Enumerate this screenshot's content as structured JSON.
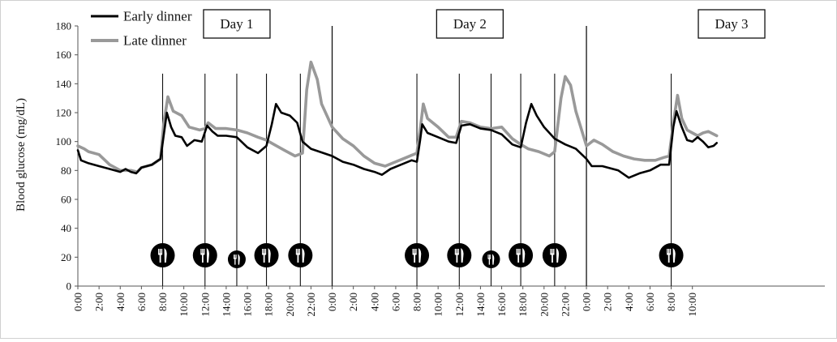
{
  "chart_data": {
    "type": "line",
    "title": "",
    "ylabel": "Blood glucose (mg/dL)",
    "xlabel": "",
    "ylim": [
      0,
      180
    ],
    "yticks": [
      0,
      20,
      40,
      60,
      80,
      100,
      120,
      140,
      160,
      180
    ],
    "grid": false,
    "legend_position": "top-left",
    "x_unit": "hours from Day 1 0:00",
    "x_range": [
      0,
      70.5
    ],
    "xtick_labels": [
      {
        "x": 0,
        "label": "0:00"
      },
      {
        "x": 2,
        "label": "2:00"
      },
      {
        "x": 4,
        "label": "4:00"
      },
      {
        "x": 6,
        "label": "6:00"
      },
      {
        "x": 8,
        "label": "8:00"
      },
      {
        "x": 10,
        "label": "10:00"
      },
      {
        "x": 12,
        "label": "12:00"
      },
      {
        "x": 14,
        "label": "14:00"
      },
      {
        "x": 16,
        "label": "16:00"
      },
      {
        "x": 18,
        "label": "18:00"
      },
      {
        "x": 20,
        "label": "20:00"
      },
      {
        "x": 22,
        "label": "22:00"
      },
      {
        "x": 24,
        "label": "0:00"
      },
      {
        "x": 26,
        "label": "2:00"
      },
      {
        "x": 28,
        "label": "4:00"
      },
      {
        "x": 30,
        "label": "6:00"
      },
      {
        "x": 32,
        "label": "8:00"
      },
      {
        "x": 34,
        "label": "10:00"
      },
      {
        "x": 36,
        "label": "12:00"
      },
      {
        "x": 38,
        "label": "14:00"
      },
      {
        "x": 40,
        "label": "16:00"
      },
      {
        "x": 42,
        "label": "18:00"
      },
      {
        "x": 44,
        "label": "20:00"
      },
      {
        "x": 46,
        "label": "22:00"
      },
      {
        "x": 48,
        "label": "0:00"
      },
      {
        "x": 50,
        "label": "2:00"
      },
      {
        "x": 52,
        "label": "4:00"
      },
      {
        "x": 54,
        "label": "6:00"
      },
      {
        "x": 56,
        "label": "8:00"
      },
      {
        "x": 58,
        "label": "10:00"
      }
    ],
    "day_labels": [
      {
        "label": "Day 1",
        "x": 15
      },
      {
        "label": "Day 2",
        "x": 37
      },
      {
        "label": "Day 3",
        "x": 61.7
      }
    ],
    "day_boundaries": [
      24,
      48
    ],
    "meals": [
      {
        "x": 8,
        "size": "large"
      },
      {
        "x": 12,
        "size": "large"
      },
      {
        "x": 15,
        "size": "small"
      },
      {
        "x": 17.8,
        "size": "large"
      },
      {
        "x": 21,
        "size": "large"
      },
      {
        "x": 32,
        "size": "large"
      },
      {
        "x": 36,
        "size": "large"
      },
      {
        "x": 39,
        "size": "small"
      },
      {
        "x": 41.8,
        "size": "large"
      },
      {
        "x": 45,
        "size": "large"
      },
      {
        "x": 56,
        "size": "large"
      }
    ],
    "series": [
      {
        "name": "Early dinner",
        "color": "#000000",
        "points": [
          [
            0,
            94
          ],
          [
            0.3,
            87
          ],
          [
            1,
            85
          ],
          [
            2,
            83
          ],
          [
            3,
            81
          ],
          [
            4,
            79
          ],
          [
            4.5,
            81
          ],
          [
            5,
            79
          ],
          [
            5.5,
            78
          ],
          [
            6,
            82
          ],
          [
            7,
            84
          ],
          [
            7.8,
            88
          ],
          [
            8.1,
            104
          ],
          [
            8.4,
            120
          ],
          [
            8.8,
            110
          ],
          [
            9.2,
            104
          ],
          [
            9.8,
            103
          ],
          [
            10.3,
            97
          ],
          [
            11,
            101
          ],
          [
            11.7,
            100
          ],
          [
            12.2,
            111
          ],
          [
            12.7,
            107
          ],
          [
            13.2,
            104
          ],
          [
            14,
            104
          ],
          [
            15,
            103
          ],
          [
            16,
            96
          ],
          [
            17,
            92
          ],
          [
            17.8,
            97
          ],
          [
            18.3,
            112
          ],
          [
            18.7,
            126
          ],
          [
            19.2,
            120
          ],
          [
            20,
            118
          ],
          [
            20.7,
            113
          ],
          [
            21.2,
            100
          ],
          [
            22,
            95
          ],
          [
            24,
            90
          ],
          [
            25,
            86
          ],
          [
            26,
            84
          ],
          [
            27,
            81
          ],
          [
            28,
            79
          ],
          [
            28.7,
            77
          ],
          [
            29.5,
            81
          ],
          [
            30.5,
            84
          ],
          [
            31.5,
            87
          ],
          [
            32,
            86
          ],
          [
            32.3,
            101
          ],
          [
            32.5,
            112
          ],
          [
            33,
            106
          ],
          [
            34,
            103
          ],
          [
            35,
            100
          ],
          [
            35.7,
            99
          ],
          [
            36.2,
            111
          ],
          [
            37,
            112
          ],
          [
            38,
            109
          ],
          [
            39,
            108
          ],
          [
            40,
            105
          ],
          [
            41,
            98
          ],
          [
            41.8,
            96
          ],
          [
            42.3,
            113
          ],
          [
            42.8,
            126
          ],
          [
            43.3,
            118
          ],
          [
            44,
            110
          ],
          [
            45,
            102
          ],
          [
            46,
            98
          ],
          [
            47,
            95
          ],
          [
            48,
            88
          ],
          [
            48.5,
            83
          ],
          [
            49.5,
            83
          ],
          [
            50,
            82
          ],
          [
            51,
            80
          ],
          [
            52,
            75
          ],
          [
            53,
            78
          ],
          [
            54,
            80
          ],
          [
            55,
            84
          ],
          [
            55.8,
            84
          ],
          [
            56.2,
            110
          ],
          [
            56.5,
            121
          ],
          [
            57,
            110
          ],
          [
            57.5,
            101
          ],
          [
            58,
            100
          ],
          [
            58.5,
            103
          ],
          [
            59,
            100
          ],
          [
            59.5,
            96
          ],
          [
            60,
            97
          ],
          [
            60.3,
            99
          ]
        ]
      },
      {
        "name": "Late dinner",
        "color": "#999999",
        "points": [
          [
            0,
            97
          ],
          [
            0.6,
            95
          ],
          [
            1,
            93
          ],
          [
            2,
            91
          ],
          [
            3,
            84
          ],
          [
            4,
            80
          ],
          [
            5,
            80
          ],
          [
            5.6,
            79
          ],
          [
            6,
            82
          ],
          [
            7,
            84
          ],
          [
            7.8,
            88
          ],
          [
            8.1,
            112
          ],
          [
            8.5,
            131
          ],
          [
            9,
            121
          ],
          [
            9.8,
            118
          ],
          [
            10.5,
            110
          ],
          [
            11.5,
            108
          ],
          [
            12,
            109
          ],
          [
            12.3,
            113
          ],
          [
            13,
            109
          ],
          [
            14,
            109
          ],
          [
            15,
            108
          ],
          [
            16,
            106
          ],
          [
            17,
            103
          ],
          [
            17.8,
            101
          ],
          [
            18.5,
            98
          ],
          [
            19.5,
            94
          ],
          [
            20.5,
            90
          ],
          [
            21.2,
            92
          ],
          [
            21.6,
            136
          ],
          [
            22,
            155
          ],
          [
            22.6,
            143
          ],
          [
            23,
            126
          ],
          [
            24,
            110
          ],
          [
            25,
            102
          ],
          [
            26,
            97
          ],
          [
            27,
            90
          ],
          [
            28,
            85
          ],
          [
            29,
            83
          ],
          [
            30,
            86
          ],
          [
            31,
            89
          ],
          [
            32,
            92
          ],
          [
            32.3,
            108
          ],
          [
            32.6,
            126
          ],
          [
            33,
            116
          ],
          [
            34,
            110
          ],
          [
            35,
            103
          ],
          [
            35.7,
            103
          ],
          [
            36.2,
            114
          ],
          [
            37,
            113
          ],
          [
            38,
            110
          ],
          [
            39,
            109
          ],
          [
            40,
            110
          ],
          [
            41,
            102
          ],
          [
            41.8,
            98
          ],
          [
            42.5,
            95
          ],
          [
            43.5,
            93
          ],
          [
            44.5,
            90
          ],
          [
            45,
            93
          ],
          [
            45.6,
            130
          ],
          [
            46,
            145
          ],
          [
            46.5,
            139
          ],
          [
            47,
            121
          ],
          [
            48,
            97
          ],
          [
            48.7,
            101
          ],
          [
            49.5,
            98
          ],
          [
            50.5,
            93
          ],
          [
            51.5,
            90
          ],
          [
            52.5,
            88
          ],
          [
            53.5,
            87
          ],
          [
            54.5,
            87
          ],
          [
            55.3,
            89
          ],
          [
            55.8,
            90
          ],
          [
            56.2,
            113
          ],
          [
            56.6,
            132
          ],
          [
            57,
            116
          ],
          [
            57.5,
            108
          ],
          [
            58,
            106
          ],
          [
            58.5,
            104
          ],
          [
            59,
            106
          ],
          [
            59.5,
            107
          ],
          [
            60.3,
            104
          ]
        ]
      }
    ]
  }
}
